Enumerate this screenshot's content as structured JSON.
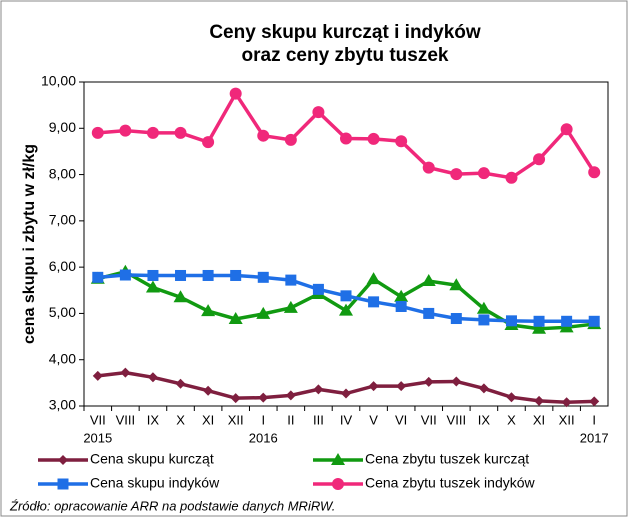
{
  "chart_data": {
    "type": "line",
    "title": [
      "Ceny skupu kurcząt i indyków",
      "oraz ceny zbytu tuszek"
    ],
    "y_label": "cena skupu i zbytu w zł/kg",
    "categories": [
      "VII",
      "VIII",
      "IX",
      "X",
      "XI",
      "XII",
      "I",
      "II",
      "III",
      "IV",
      "V",
      "VI",
      "VII",
      "VIII",
      "IX",
      "X",
      "XI",
      "XII",
      "I"
    ],
    "years": [
      "2015",
      null,
      null,
      null,
      null,
      null,
      "2016",
      null,
      null,
      null,
      null,
      null,
      null,
      null,
      null,
      null,
      null,
      null,
      "2017"
    ],
    "ylim": [
      3,
      10
    ],
    "yticks": [
      {
        "value": 3,
        "label": "3,00"
      },
      {
        "value": 4,
        "label": "4,00"
      },
      {
        "value": 5,
        "label": "5,00"
      },
      {
        "value": 6,
        "label": "6,00"
      },
      {
        "value": 7,
        "label": "7,00"
      },
      {
        "value": 8,
        "label": "8,00"
      },
      {
        "value": 9,
        "label": "9,00"
      },
      {
        "value": 10,
        "label": "10,00"
      }
    ],
    "grid": false,
    "series": [
      {
        "name": "Cena skupu kurcząt",
        "color": "#7f1f3f",
        "marker": "diamond",
        "values": [
          3.65,
          3.72,
          3.62,
          3.48,
          3.33,
          3.17,
          3.18,
          3.23,
          3.36,
          3.27,
          3.43,
          3.43,
          3.52,
          3.53,
          3.38,
          3.19,
          3.11,
          3.08,
          3.1
        ]
      },
      {
        "name": "Cena zbytu tuszek kurcząt",
        "color": "#119a11",
        "marker": "triangle",
        "values": [
          5.75,
          5.9,
          5.56,
          5.35,
          5.05,
          4.88,
          4.99,
          5.12,
          5.42,
          5.06,
          5.74,
          5.36,
          5.7,
          5.61,
          5.1,
          4.75,
          4.67,
          4.7,
          4.77
        ]
      },
      {
        "name": "Cena skupu indyków",
        "color": "#1f6fe6",
        "marker": "square",
        "values": [
          5.78,
          5.83,
          5.82,
          5.82,
          5.82,
          5.82,
          5.78,
          5.72,
          5.52,
          5.38,
          5.25,
          5.15,
          5.0,
          4.89,
          4.86,
          4.84,
          4.83,
          4.83,
          4.83
        ]
      },
      {
        "name": "Cena zbytu tuszek indyków",
        "color": "#f0287a",
        "marker": "circle",
        "values": [
          8.9,
          8.95,
          8.9,
          8.9,
          8.7,
          9.75,
          8.84,
          8.75,
          9.35,
          8.78,
          8.77,
          8.72,
          8.15,
          8.01,
          8.03,
          7.93,
          8.33,
          8.98,
          8.05
        ]
      }
    ],
    "source": "Źródło: opracowanie ARR na podstawie danych  MRiRW."
  }
}
